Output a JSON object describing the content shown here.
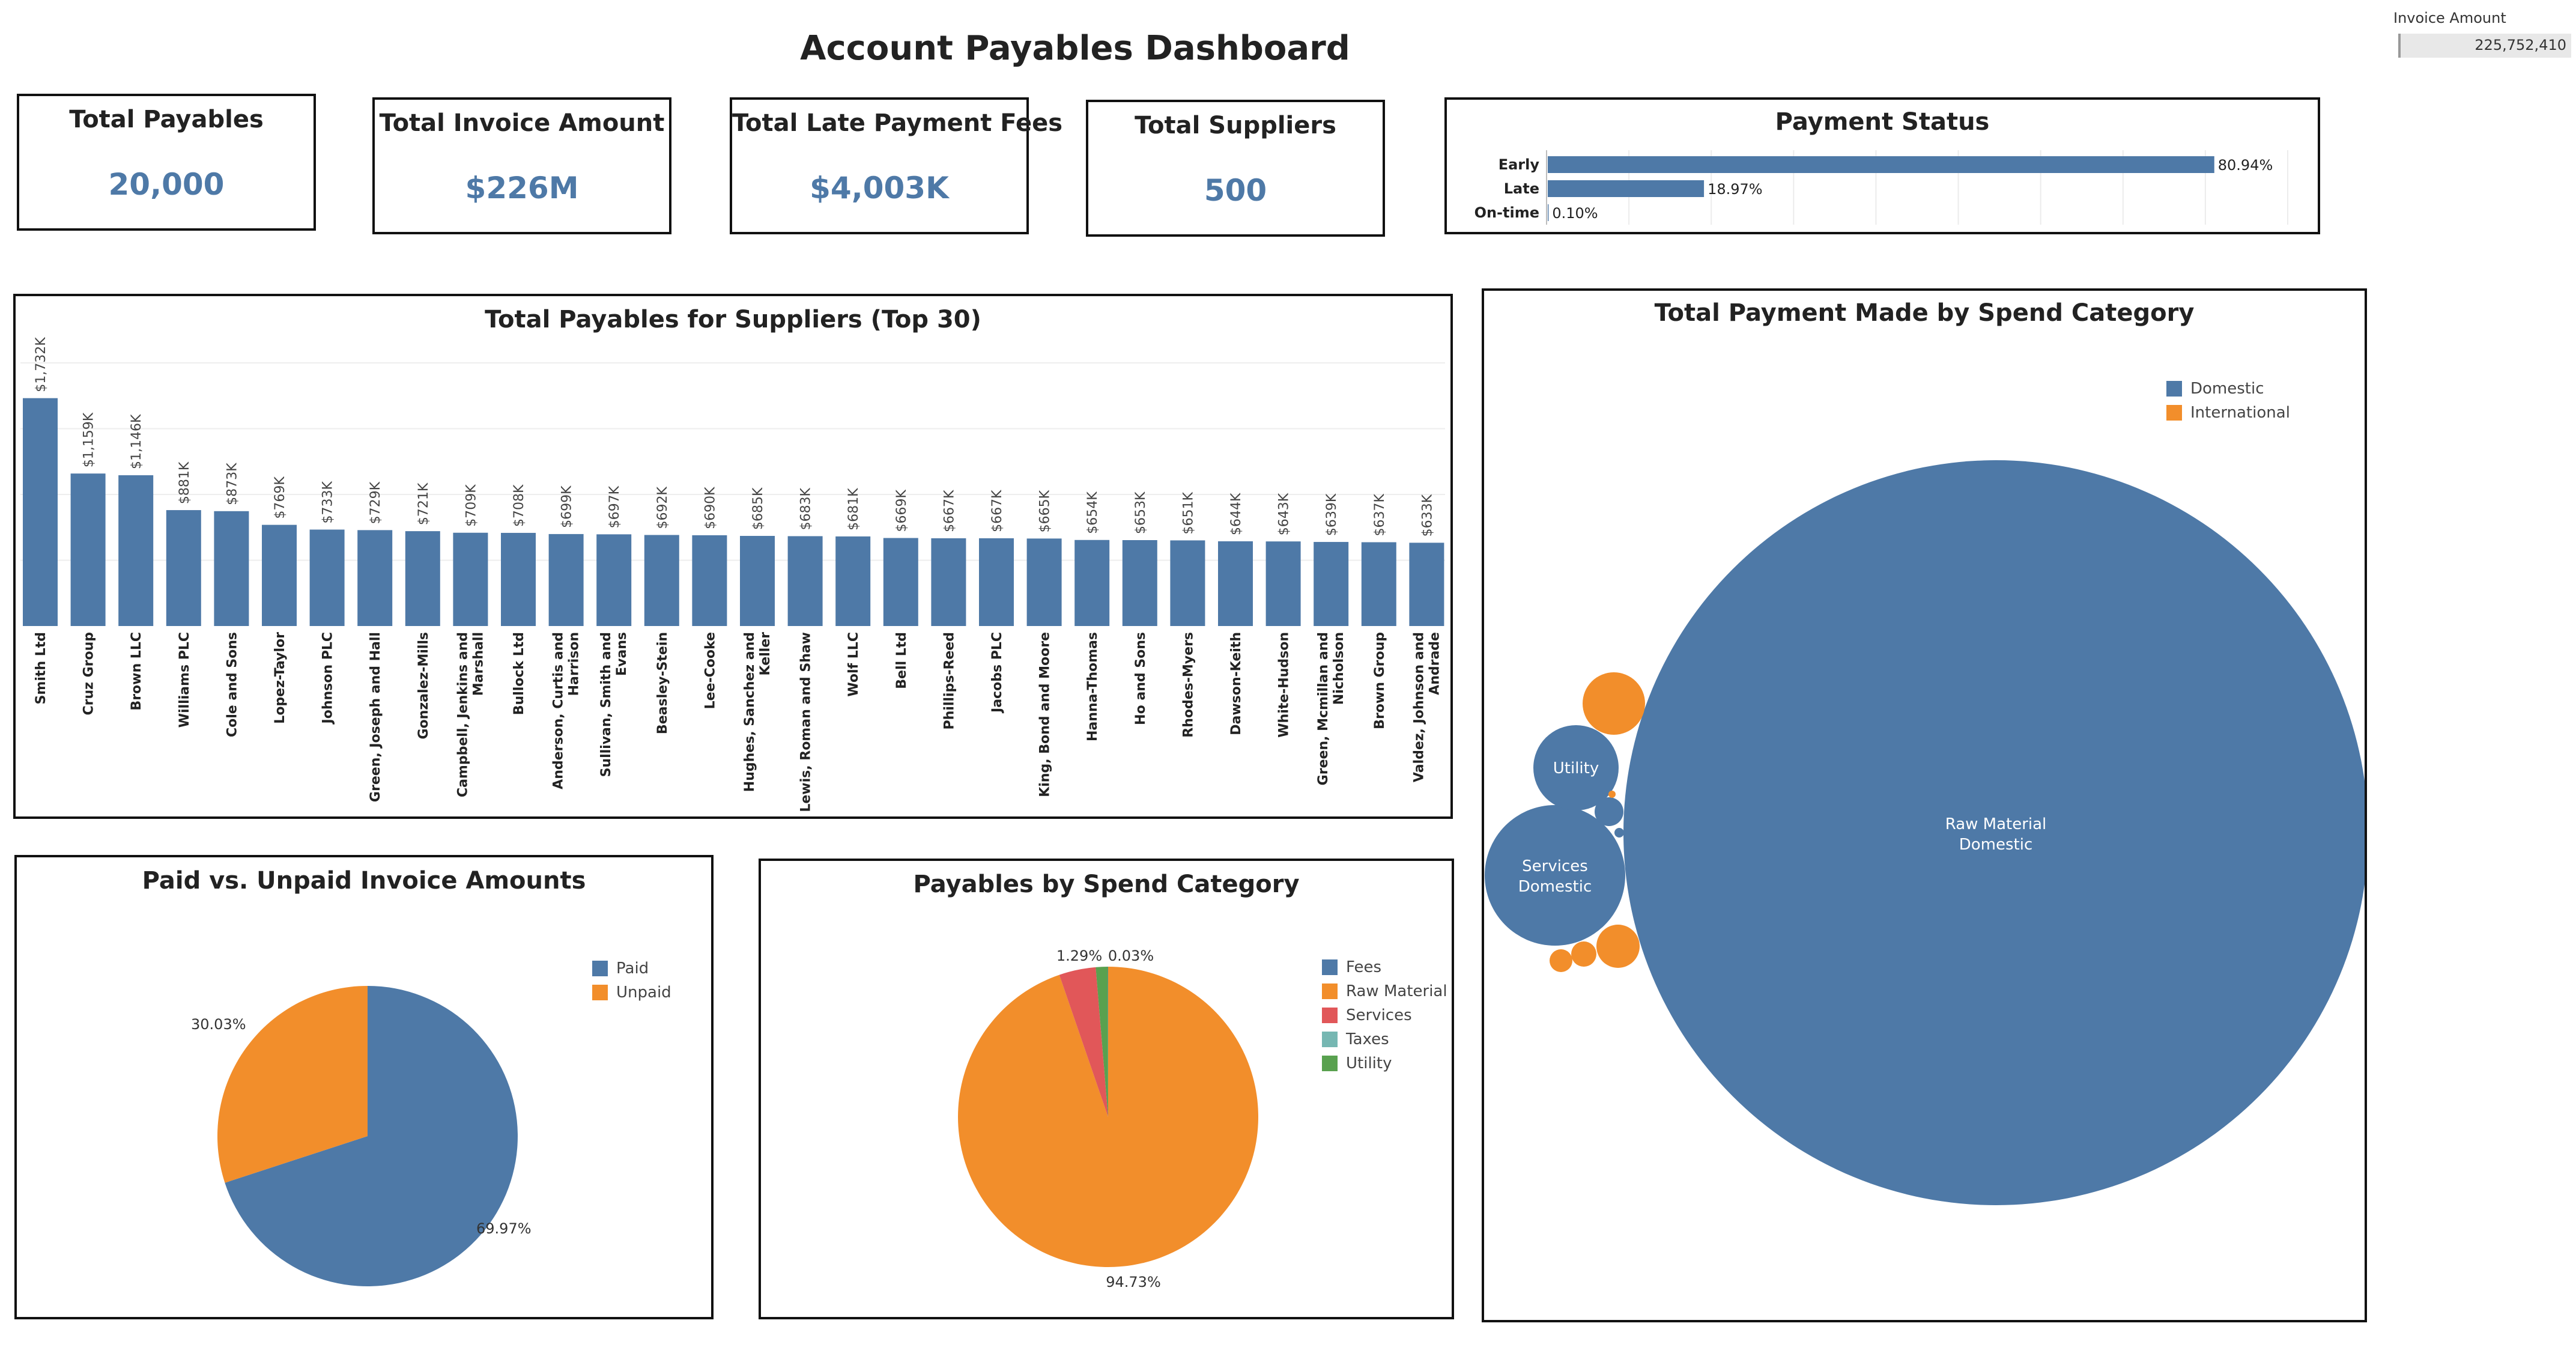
{
  "header": {
    "title": "Account Payables Dashboard"
  },
  "filter": {
    "label": "Invoice Amount",
    "value": "225,752,410"
  },
  "kpis": {
    "total_payables": {
      "label": "Total Payables",
      "value": "20,000"
    },
    "total_invoice": {
      "label": "Total Invoice Amount",
      "value": "$226M"
    },
    "late_fees": {
      "label": "Total Late Payment Fees",
      "value": "$4,003K"
    },
    "suppliers": {
      "label": "Total Suppliers",
      "value": "500"
    }
  },
  "payment_status": {
    "title": "Payment Status",
    "rows": [
      {
        "label": "Early",
        "label_text": "80.94%"
      },
      {
        "label": "Late",
        "label_text": "18.97%"
      },
      {
        "label": "On-time",
        "label_text": "0.10%"
      }
    ]
  },
  "suppliers_chart": {
    "title": "Total Payables for Suppliers (Top 30)"
  },
  "paid_chart": {
    "title": "Paid vs. Unpaid Invoice Amounts",
    "legend": [
      {
        "label": "Paid"
      },
      {
        "label": "Unpaid"
      }
    ],
    "labels": [
      "69.97%",
      "30.03%"
    ]
  },
  "spend_chart": {
    "title": "Payables by Spend Category",
    "legend": [
      {
        "label": "Fees"
      },
      {
        "label": "Raw Material"
      },
      {
        "label": "Services"
      },
      {
        "label": "Taxes"
      },
      {
        "label": "Utility"
      }
    ],
    "labels": [
      "94.73%",
      "1.29%",
      "0.03%"
    ]
  },
  "bubble_chart": {
    "title": "Total Payment Made by Spend Category",
    "legend": [
      {
        "label": "Domestic"
      },
      {
        "label": "International"
      }
    ],
    "labels": {
      "raw_material_1": "Raw Material",
      "raw_material_2": "Domestic",
      "services_1": "Services",
      "services_2": "Domestic",
      "utility": "Utility"
    }
  },
  "colors": {
    "blue": "#4e79a7",
    "orange": "#f28e2b",
    "red": "#e15759",
    "teal": "#76b7b2",
    "green": "#59a14f"
  },
  "chart_data": [
    {
      "type": "bar",
      "title": "Payment Status",
      "orientation": "horizontal",
      "categories": [
        "Early",
        "Late",
        "On-time"
      ],
      "values": [
        80.94,
        18.97,
        0.1
      ],
      "value_labels": [
        "80.94%",
        "18.97%",
        "0.10%"
      ],
      "xlim": [
        0,
        90
      ],
      "grid": true
    },
    {
      "type": "bar",
      "title": "Total Payables for Suppliers (Top 30)",
      "categories": [
        "Smith Ltd",
        "Cruz Group",
        "Brown LLC",
        "Williams PLC",
        "Cole and Sons",
        "Lopez-Taylor",
        "Johnson PLC",
        "Green, Joseph and Hall",
        "Gonzalez-Mills",
        "Campbell, Jenkins and Marshall",
        "Bullock Ltd",
        "Anderson, Curtis and Harrison",
        "Sullivan, Smith and Evans",
        "Beasley-Stein",
        "Lee-Cooke",
        "Hughes, Sanchez and Keller",
        "Lewis, Roman and Shaw",
        "Wolf LLC",
        "Bell Ltd",
        "Phillips-Reed",
        "Jacobs PLC",
        "King, Bond and Moore",
        "Hanna-Thomas",
        "Ho and Sons",
        "Rhodes-Myers",
        "Dawson-Keith",
        "White-Hudson",
        "Green, Mcmillan and Nicholson",
        "Brown Group",
        "Valdez, Johnson and Andrade"
      ],
      "values": [
        1732,
        1159,
        1146,
        881,
        873,
        769,
        733,
        729,
        721,
        709,
        708,
        699,
        697,
        692,
        690,
        685,
        683,
        681,
        669,
        667,
        667,
        665,
        654,
        653,
        651,
        644,
        643,
        639,
        637,
        633
      ],
      "value_labels": [
        "$1,732K",
        "$1,159K",
        "$1,146K",
        "$881K",
        "$873K",
        "$769K",
        "$733K",
        "$729K",
        "$721K",
        "$709K",
        "$708K",
        "$699K",
        "$697K",
        "$692K",
        "$690K",
        "$685K",
        "$683K",
        "$681K",
        "$669K",
        "$667K",
        "$667K",
        "$665K",
        "$654K",
        "$653K",
        "$651K",
        "$644K",
        "$643K",
        "$639K",
        "$637K",
        "$633K"
      ],
      "ylim": [
        0,
        2000
      ],
      "grid": true
    },
    {
      "type": "pie",
      "title": "Paid vs. Unpaid Invoice Amounts",
      "categories": [
        "Paid",
        "Unpaid"
      ],
      "values": [
        69.97,
        30.03
      ],
      "legend": "right"
    },
    {
      "type": "pie",
      "title": "Payables by Spend Category",
      "categories": [
        "Raw Material",
        "Services",
        "Utility",
        "Fees",
        "Taxes"
      ],
      "values": [
        94.73,
        3.95,
        1.29,
        0.03,
        0.0
      ],
      "legend": "right"
    },
    {
      "type": "bubble",
      "title": "Total Payment Made by Spend Category",
      "series": [
        {
          "name": "Domestic",
          "categories": [
            "Raw Material",
            "Services",
            "Utility",
            "Fees",
            "Taxes"
          ],
          "values": [
            100,
            3.6,
            1.3,
            0.11,
            0.02
          ]
        },
        {
          "name": "International",
          "categories": [
            "Raw Material",
            "Services",
            "Utility",
            "Fees",
            "Taxes"
          ],
          "values": [
            0.95,
            0.48,
            0.11,
            0.07,
            0.04
          ]
        }
      ],
      "legend": "top-right"
    }
  ]
}
